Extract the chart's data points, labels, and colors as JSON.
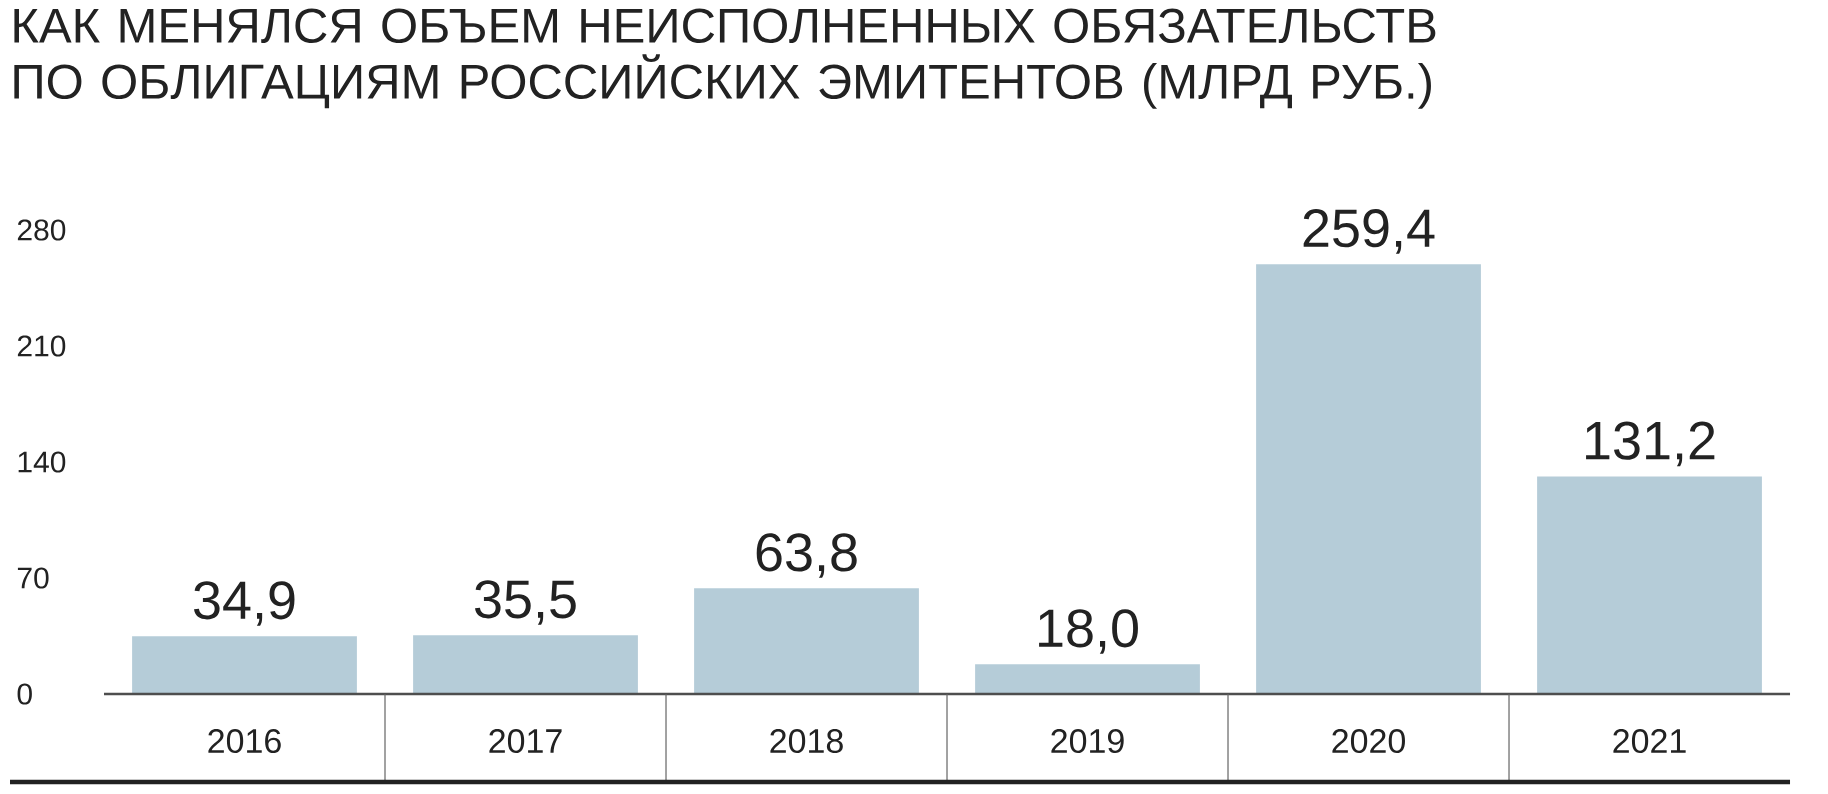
{
  "chart_data": {
    "type": "bar",
    "title": "КАК МЕНЯЛСЯ ОБЪЕМ НЕИСПОЛНЕННЫХ ОБЯЗАТЕЛЬСТВ ПО ОБЛИГАЦИЯМ РОССИЙСКИХ ЭМИТЕНТОВ (МЛРД РУБ.)",
    "categories": [
      "2016",
      "2017",
      "2018",
      "2019",
      "2020",
      "2021"
    ],
    "values": [
      34.9,
      35.5,
      63.8,
      18.0,
      259.4,
      131.2
    ],
    "value_labels": [
      "34,9",
      "35,5",
      "63,8",
      "18,0",
      "259,4",
      "131,2"
    ],
    "color": "#b5ccd8",
    "ylim": [
      0,
      280
    ],
    "yticks": [
      0,
      70,
      140,
      210,
      280
    ]
  }
}
